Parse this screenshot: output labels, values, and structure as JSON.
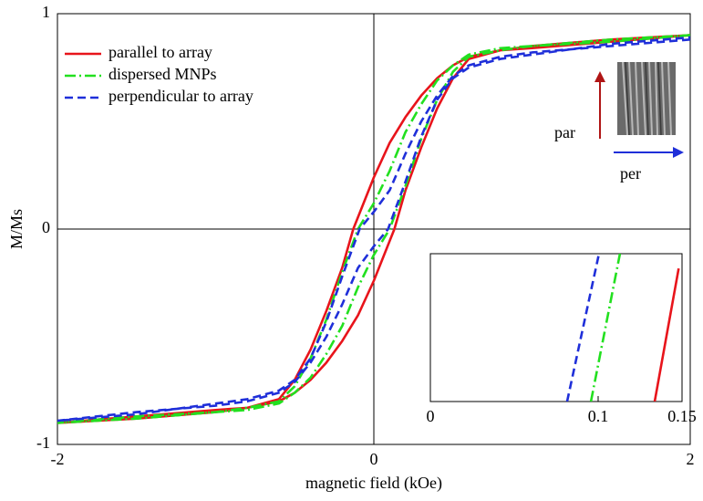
{
  "chart_data": [
    {
      "type": "line",
      "xlabel": "magnetic field (kOe)",
      "ylabel": "M/Ms",
      "xlim": [
        -2,
        2
      ],
      "ylim": [
        -1,
        1
      ],
      "xticks": [
        -2,
        0,
        2
      ],
      "yticks": [
        -1,
        0,
        1
      ],
      "legend": "upper left",
      "annotations": [
        "par",
        "per"
      ],
      "series": [
        {
          "name": "parallel to array",
          "color": "#e8141b",
          "style": "solid",
          "x": [
            2,
            1.5,
            1,
            0.8,
            0.6,
            0.5,
            0.4,
            0.3,
            0.2,
            0.1,
            0,
            -0.13,
            -0.2,
            -0.3,
            -0.4,
            -0.5,
            -0.6,
            -0.8,
            -1,
            -1.5,
            -2,
            -1.5,
            -1,
            -0.8,
            -0.6,
            -0.5,
            -0.4,
            -0.3,
            -0.2,
            -0.1,
            0,
            0.13,
            0.2,
            0.3,
            0.4,
            0.5,
            0.6,
            0.8,
            1,
            1.5,
            2
          ],
          "values": [
            0.9,
            0.87,
            0.84,
            0.83,
            0.8,
            0.76,
            0.7,
            0.62,
            0.52,
            0.4,
            0.24,
            0,
            -0.18,
            -0.38,
            -0.56,
            -0.7,
            -0.79,
            -0.83,
            -0.85,
            -0.88,
            -0.9,
            -0.87,
            -0.84,
            -0.83,
            -0.8,
            -0.76,
            -0.7,
            -0.62,
            -0.52,
            -0.4,
            -0.24,
            0,
            0.18,
            0.38,
            0.56,
            0.7,
            0.79,
            0.83,
            0.85,
            0.88,
            0.9
          ]
        },
        {
          "name": "dispersed MNPs",
          "color": "#22e01f",
          "style": "dashdot",
          "x": [
            2,
            1.5,
            1,
            0.8,
            0.6,
            0.5,
            0.4,
            0.3,
            0.2,
            0.1,
            0,
            -0.1,
            -0.2,
            -0.3,
            -0.4,
            -0.5,
            -0.6,
            -0.8,
            -1,
            -1.5,
            -2,
            -1.5,
            -1,
            -0.8,
            -0.6,
            -0.5,
            -0.4,
            -0.3,
            -0.2,
            -0.1,
            0,
            0.1,
            0.2,
            0.3,
            0.4,
            0.5,
            0.6,
            0.8,
            1,
            1.5,
            2
          ],
          "values": [
            0.9,
            0.87,
            0.85,
            0.84,
            0.81,
            0.76,
            0.69,
            0.58,
            0.45,
            0.27,
            0.12,
            0,
            -0.2,
            -0.42,
            -0.6,
            -0.73,
            -0.8,
            -0.83,
            -0.85,
            -0.88,
            -0.9,
            -0.87,
            -0.85,
            -0.84,
            -0.81,
            -0.76,
            -0.69,
            -0.58,
            -0.45,
            -0.27,
            -0.12,
            0,
            0.2,
            0.42,
            0.6,
            0.73,
            0.8,
            0.83,
            0.85,
            0.88,
            0.9
          ]
        },
        {
          "name": "perpendicular to array",
          "color": "#1f2fd9",
          "style": "dashed",
          "x": [
            2,
            1.5,
            1,
            0.8,
            0.6,
            0.5,
            0.4,
            0.3,
            0.2,
            0.1,
            0,
            -0.09,
            -0.2,
            -0.3,
            -0.4,
            -0.5,
            -0.6,
            -0.8,
            -1,
            -1.5,
            -2,
            -1.5,
            -1,
            -0.8,
            -0.6,
            -0.5,
            -0.4,
            -0.3,
            -0.2,
            -0.1,
            0,
            0.09,
            0.2,
            0.3,
            0.4,
            0.5,
            0.6,
            0.8,
            1,
            1.5,
            2
          ],
          "values": [
            0.88,
            0.85,
            0.82,
            0.8,
            0.76,
            0.71,
            0.62,
            0.5,
            0.35,
            0.18,
            0.08,
            0,
            -0.22,
            -0.43,
            -0.6,
            -0.7,
            -0.75,
            -0.79,
            -0.81,
            -0.86,
            -0.89,
            -0.85,
            -0.82,
            -0.8,
            -0.76,
            -0.71,
            -0.62,
            -0.5,
            -0.35,
            -0.18,
            -0.08,
            0,
            0.22,
            0.43,
            0.6,
            0.7,
            0.75,
            0.79,
            0.81,
            0.86,
            0.89
          ]
        }
      ]
    },
    {
      "type": "line",
      "xlim": [
        0,
        0.15
      ],
      "ylim": [
        -0.05,
        0.05
      ],
      "xticks": [
        0,
        0.1,
        0.15
      ],
      "series": [
        {
          "color": "#1f2fd9",
          "style": "dashed",
          "x": [
            0.0815,
            0.1005
          ],
          "values": [
            -0.05,
            0.05
          ]
        },
        {
          "color": "#22e01f",
          "style": "dashdot",
          "x": [
            0.0957,
            0.113
          ],
          "values": [
            -0.05,
            0.05
          ]
        },
        {
          "color": "#e8141b",
          "style": "solid",
          "x": [
            0.1337,
            0.148
          ],
          "values": [
            -0.05,
            0.04
          ]
        }
      ]
    }
  ]
}
